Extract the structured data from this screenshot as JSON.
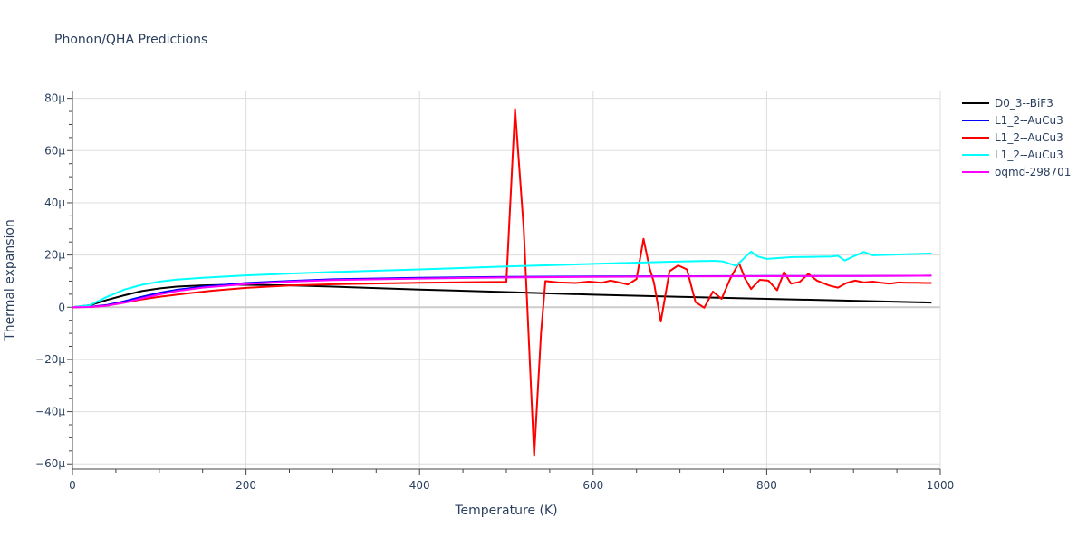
{
  "chart_data": {
    "type": "line",
    "title": "Phonon/QHA Predictions",
    "xlabel": "Temperature (K)",
    "ylabel": "Thermal expansion",
    "xlim": [
      0,
      1000
    ],
    "ylim": [
      -62,
      83
    ],
    "y_unit_suffix": "μ",
    "x_ticks": [
      0,
      200,
      400,
      600,
      800,
      1000
    ],
    "y_ticks": [
      -60,
      -40,
      -20,
      0,
      20,
      40,
      60,
      80
    ],
    "grid": true,
    "legend_position": "top-right",
    "series": [
      {
        "name": "D0_3--BiF3",
        "color": "#000000",
        "x": [
          0,
          20,
          40,
          60,
          80,
          100,
          120,
          150,
          180,
          200,
          250,
          300,
          400,
          500,
          600,
          700,
          800,
          900,
          990
        ],
        "y": [
          0,
          0.8,
          2.8,
          4.6,
          6.2,
          7.2,
          7.9,
          8.4,
          8.6,
          8.6,
          8.4,
          7.9,
          6.8,
          5.8,
          4.8,
          4.0,
          3.2,
          2.5,
          1.8
        ]
      },
      {
        "name": "L1_2--AuCu3",
        "color": "#0000ff",
        "x": [
          0,
          20,
          40,
          60,
          80,
          100,
          120,
          150,
          200,
          250,
          300,
          400,
          500,
          600,
          700,
          800,
          900,
          990
        ],
        "y": [
          0,
          0.2,
          0.9,
          2.3,
          4.0,
          5.5,
          6.7,
          7.9,
          9.3,
          10.1,
          10.7,
          11.3,
          11.6,
          11.8,
          11.9,
          12.0,
          12.0,
          12.1
        ]
      },
      {
        "name": "L1_2--AuCu3",
        "color": "#ff0000",
        "x": [
          0,
          20,
          40,
          60,
          80,
          100,
          130,
          160,
          200,
          250,
          300,
          400,
          500,
          510,
          520,
          532,
          540,
          545,
          560,
          580,
          595,
          610,
          620,
          630,
          640,
          650,
          658,
          665,
          670,
          678,
          688,
          698,
          708,
          718,
          728,
          738,
          748,
          758,
          768,
          775,
          782,
          792,
          802,
          812,
          820,
          828,
          838,
          848,
          858,
          872,
          882,
          892,
          902,
          912,
          922,
          932,
          942,
          952,
          962,
          972,
          982,
          990
        ],
        "y": [
          0,
          0.1,
          0.6,
          1.8,
          3.0,
          4.0,
          5.2,
          6.3,
          7.4,
          8.3,
          8.8,
          9.4,
          9.7,
          76,
          30,
          -57,
          -10,
          10,
          9.5,
          9.3,
          9.8,
          9.4,
          10.2,
          9.5,
          8.7,
          10.8,
          26.2,
          15,
          9.5,
          -5.5,
          13.8,
          16.0,
          14.5,
          2.0,
          -0.2,
          6.0,
          3.2,
          11.0,
          17.0,
          11.0,
          7.0,
          10.5,
          10.2,
          6.5,
          13.5,
          9.0,
          9.7,
          12.8,
          10.2,
          8.3,
          7.5,
          9.3,
          10.2,
          9.5,
          9.8,
          9.4,
          9.0,
          9.5,
          9.4,
          9.4,
          9.3,
          9.3
        ]
      },
      {
        "name": "L1_2--AuCu3",
        "color": "#00ffff",
        "x": [
          0,
          20,
          40,
          60,
          80,
          100,
          120,
          150,
          200,
          250,
          300,
          400,
          500,
          600,
          700,
          740,
          750,
          765,
          775,
          782,
          790,
          800,
          830,
          875,
          882,
          890,
          900,
          912,
          922,
          990
        ],
        "y": [
          0,
          0.8,
          4.0,
          6.8,
          8.6,
          9.8,
          10.6,
          11.3,
          12.2,
          12.9,
          13.5,
          14.5,
          15.6,
          16.6,
          17.5,
          17.8,
          17.5,
          15.8,
          19.2,
          21.3,
          19.4,
          18.5,
          19.2,
          19.4,
          19.7,
          17.9,
          19.5,
          21.2,
          19.9,
          20.6
        ]
      },
      {
        "name": "oqmd-298701",
        "color": "#ff00ff",
        "x": [
          0,
          20,
          40,
          60,
          80,
          100,
          120,
          150,
          200,
          250,
          300,
          400,
          500,
          600,
          700,
          800,
          900,
          990
        ],
        "y": [
          0,
          0.1,
          0.6,
          1.8,
          3.4,
          4.9,
          6.2,
          7.5,
          8.9,
          9.8,
          10.4,
          11.0,
          11.4,
          11.6,
          11.8,
          11.9,
          12.0,
          12.1
        ]
      }
    ]
  }
}
